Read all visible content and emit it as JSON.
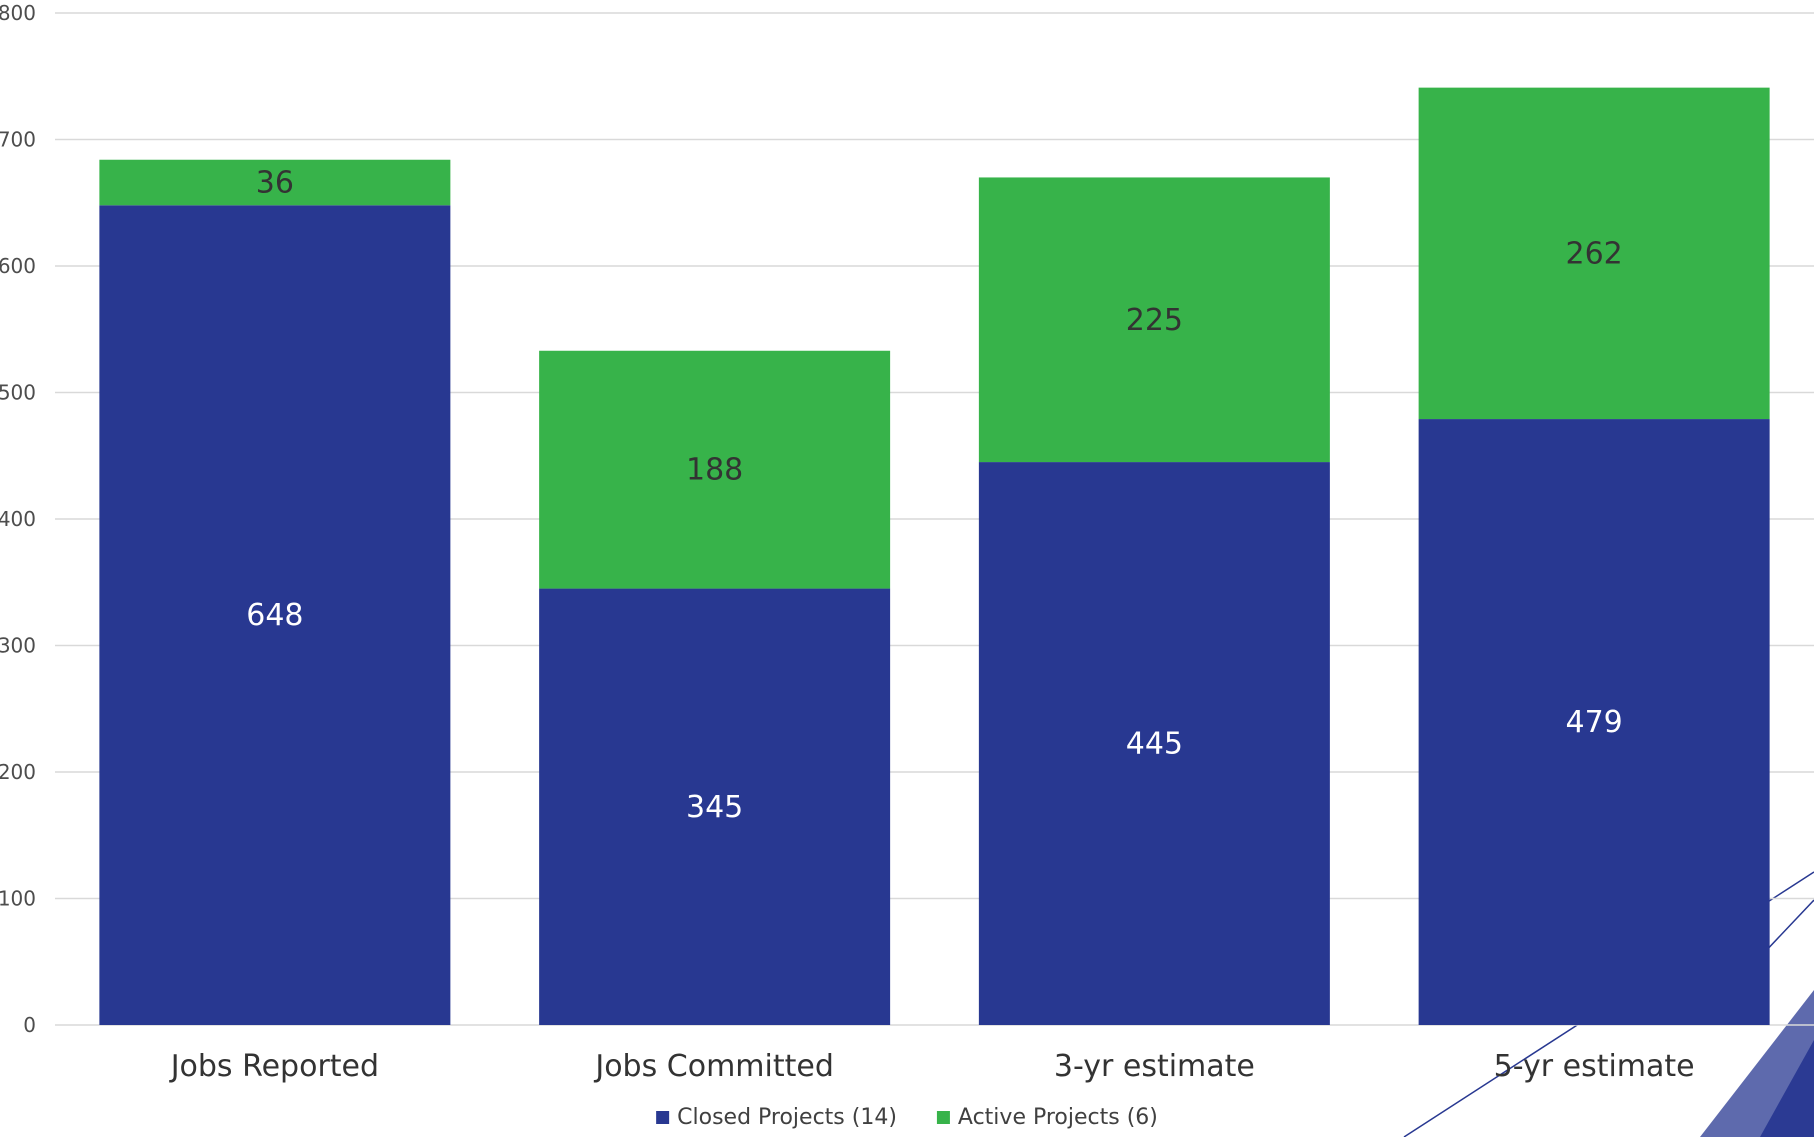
{
  "chart_data": {
    "type": "bar",
    "stacked": true,
    "categories": [
      "Jobs Reported",
      "Jobs Committed",
      "3-yr estimate",
      "5-yr estimate"
    ],
    "series": [
      {
        "name": "Closed Projects (14)",
        "values": [
          648,
          345,
          445,
          479
        ],
        "color": "#283891",
        "label_color": "#ffffff"
      },
      {
        "name": "Active Projects (6)",
        "values": [
          36,
          188,
          225,
          262
        ],
        "color": "#37b34a",
        "label_color": "#333333"
      }
    ],
    "y_ticks": [
      "0",
      "100",
      "200",
      "300",
      "400",
      "500",
      "600",
      "700",
      "800"
    ],
    "ylim": [
      0,
      800
    ],
    "grid": true,
    "legend_position": "bottom-center",
    "title": "",
    "xlabel": "",
    "ylabel": ""
  },
  "decoration": {
    "accent_color": "#283891"
  }
}
